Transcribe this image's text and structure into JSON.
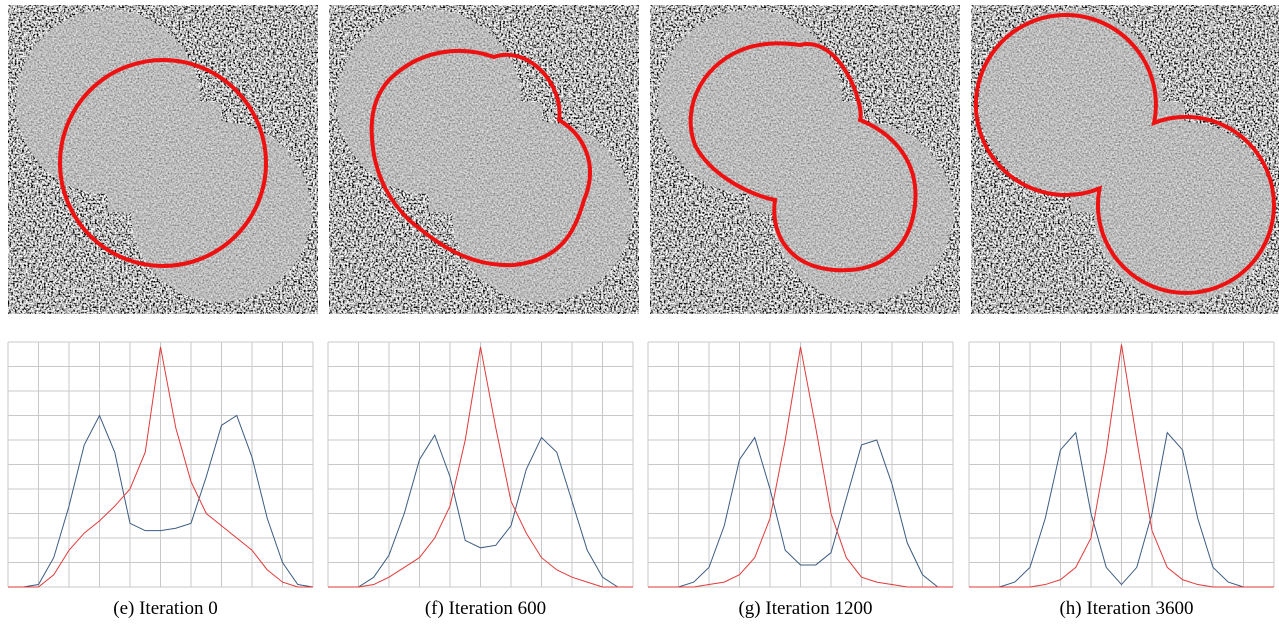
{
  "chart_data": [
    {
      "type": "line",
      "caption": "(e) Iteration 0",
      "x": [
        0,
        0.5,
        1,
        1.5,
        2,
        2.5,
        3,
        3.5,
        4,
        4.5,
        5,
        5.5,
        6,
        6.5,
        7,
        7.5,
        8,
        8.5,
        9,
        9.5,
        10
      ],
      "xlim": [
        0,
        10
      ],
      "ylim": [
        0,
        10
      ],
      "xticks": [
        0,
        1,
        2,
        3,
        4,
        5,
        6,
        7,
        8,
        9,
        10
      ],
      "yticks": [
        0,
        1,
        2,
        3,
        4,
        5,
        6,
        7,
        8,
        9,
        10
      ],
      "grid": true,
      "series": [
        {
          "color": "#3b5b82",
          "values": [
            0,
            0,
            0.1,
            1.2,
            3.3,
            5.8,
            7.0,
            5.5,
            2.6,
            2.3,
            2.3,
            2.4,
            2.6,
            4.5,
            6.6,
            7.0,
            5.3,
            2.8,
            1.0,
            0.1,
            0
          ]
        },
        {
          "color": "#e23a3a",
          "values": [
            0,
            0,
            0,
            0.5,
            1.5,
            2.2,
            2.7,
            3.3,
            4.0,
            5.5,
            9.8,
            6.5,
            4.3,
            3.0,
            2.5,
            2.0,
            1.5,
            0.7,
            0.2,
            0,
            0
          ]
        }
      ]
    },
    {
      "type": "line",
      "caption": "(f) Iteration 600",
      "x": [
        0,
        0.5,
        1,
        1.5,
        2,
        2.5,
        3,
        3.5,
        4,
        4.5,
        5,
        5.5,
        6,
        6.5,
        7,
        7.5,
        8,
        8.5,
        9,
        9.5,
        10
      ],
      "xlim": [
        0,
        10
      ],
      "ylim": [
        0,
        10
      ],
      "xticks": [
        0,
        1,
        2,
        3,
        4,
        5,
        6,
        7,
        8,
        9,
        10
      ],
      "yticks": [
        0,
        1,
        2,
        3,
        4,
        5,
        6,
        7,
        8,
        9,
        10
      ],
      "grid": true,
      "series": [
        {
          "color": "#3b5b82",
          "values": [
            0,
            0,
            0,
            0.4,
            1.3,
            3.0,
            5.2,
            6.2,
            4.5,
            1.9,
            1.6,
            1.7,
            2.5,
            4.8,
            6.1,
            5.5,
            3.5,
            1.5,
            0.4,
            0,
            0
          ]
        },
        {
          "color": "#e23a3a",
          "values": [
            0,
            0,
            0,
            0.1,
            0.4,
            0.8,
            1.2,
            2.0,
            3.3,
            6.0,
            9.8,
            6.5,
            3.5,
            2.2,
            1.2,
            0.7,
            0.4,
            0.2,
            0,
            0,
            0
          ]
        }
      ]
    },
    {
      "type": "line",
      "caption": "(g) Iteration 1200",
      "x": [
        0,
        0.5,
        1,
        1.5,
        2,
        2.5,
        3,
        3.5,
        4,
        4.5,
        5,
        5.5,
        6,
        6.5,
        7,
        7.5,
        8,
        8.5,
        9,
        9.5,
        10
      ],
      "xlim": [
        0,
        10
      ],
      "ylim": [
        0,
        10
      ],
      "xticks": [
        0,
        1,
        2,
        3,
        4,
        5,
        6,
        7,
        8,
        9,
        10
      ],
      "yticks": [
        0,
        1,
        2,
        3,
        4,
        5,
        6,
        7,
        8,
        9,
        10
      ],
      "grid": true,
      "series": [
        {
          "color": "#3b5b82",
          "values": [
            0,
            0,
            0,
            0.2,
            0.8,
            2.5,
            5.2,
            6.1,
            4.0,
            1.5,
            0.9,
            0.9,
            1.4,
            3.6,
            5.8,
            6.0,
            4.2,
            1.8,
            0.5,
            0,
            0
          ]
        },
        {
          "color": "#e23a3a",
          "values": [
            0,
            0,
            0,
            0,
            0.1,
            0.2,
            0.5,
            1.2,
            2.8,
            6.0,
            9.8,
            6.5,
            3.0,
            1.2,
            0.4,
            0.2,
            0.1,
            0,
            0,
            0,
            0
          ]
        }
      ]
    },
    {
      "type": "line",
      "caption": "(h) Iteration 3600",
      "x": [
        0,
        0.5,
        1,
        1.5,
        2,
        2.5,
        3,
        3.5,
        4,
        4.5,
        5,
        5.5,
        6,
        6.5,
        7,
        7.5,
        8,
        8.5,
        9,
        9.5,
        10
      ],
      "xlim": [
        0,
        10
      ],
      "ylim": [
        0,
        10
      ],
      "xticks": [
        0,
        1,
        2,
        3,
        4,
        5,
        6,
        7,
        8,
        9,
        10
      ],
      "yticks": [
        0,
        1,
        2,
        3,
        4,
        5,
        6,
        7,
        8,
        9,
        10
      ],
      "grid": true,
      "series": [
        {
          "color": "#3b5b82",
          "values": [
            0,
            0,
            0,
            0.2,
            0.8,
            2.8,
            5.6,
            6.3,
            3.0,
            0.8,
            0.1,
            0.8,
            3.0,
            6.3,
            5.6,
            2.8,
            0.8,
            0.2,
            0,
            0,
            0
          ]
        },
        {
          "color": "#e23a3a",
          "values": [
            0,
            0,
            0,
            0,
            0,
            0.1,
            0.3,
            0.8,
            2.0,
            5.5,
            9.9,
            6.0,
            2.3,
            0.8,
            0.3,
            0.1,
            0,
            0,
            0,
            0,
            0
          ]
        }
      ]
    }
  ]
}
